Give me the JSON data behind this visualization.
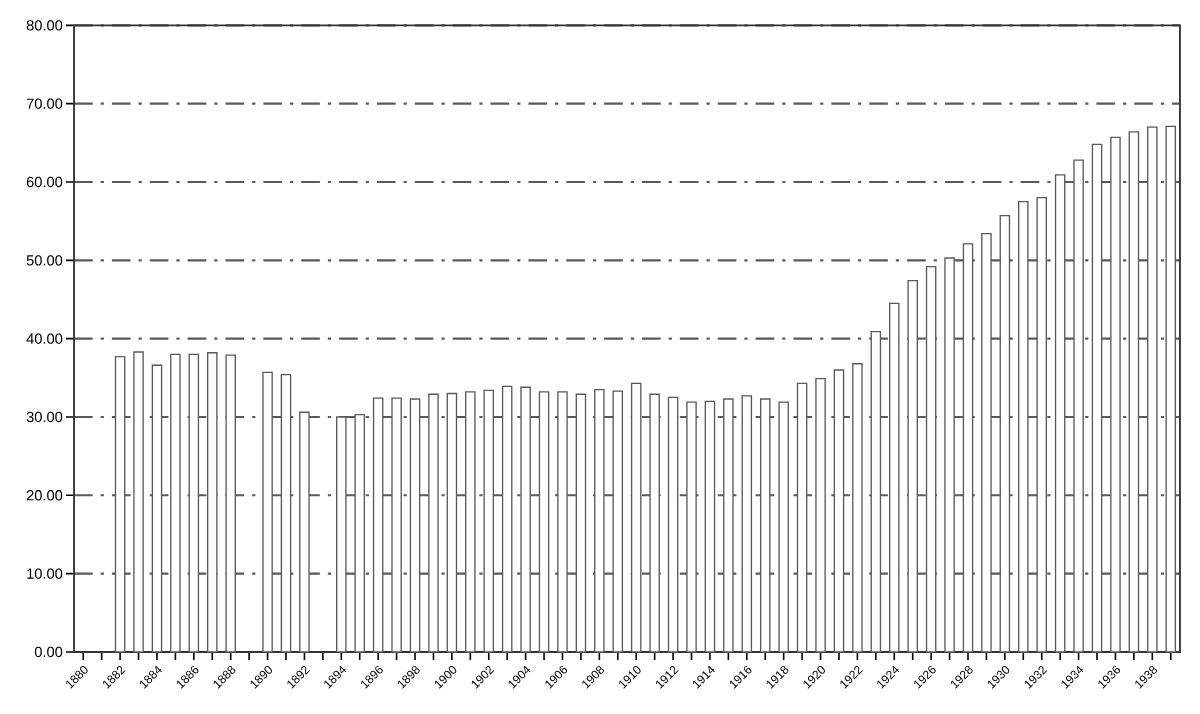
{
  "chart_data": {
    "type": "bar",
    "categories": [
      "1880",
      null,
      "1882",
      null,
      "1884",
      null,
      "1886",
      null,
      "1888",
      null,
      "1890",
      null,
      "1892",
      null,
      "1894",
      null,
      "1896",
      null,
      "1898",
      null,
      "1900",
      null,
      "1902",
      null,
      "1904",
      null,
      "1906",
      null,
      "1908",
      null,
      "1910",
      null,
      "1912",
      null,
      "1914",
      null,
      "1916",
      null,
      "1918",
      null,
      "1920",
      null,
      "1922",
      null,
      "1924",
      null,
      "1926",
      null,
      "1928",
      null,
      "1930",
      null,
      "1932",
      null,
      "1934",
      null,
      "1936",
      null,
      "1938",
      null
    ],
    "values": [
      null,
      null,
      37.7,
      38.3,
      36.6,
      38.0,
      38.0,
      38.2,
      37.9,
      null,
      35.7,
      35.4,
      30.6,
      null,
      30.0,
      30.3,
      32.4,
      32.4,
      32.3,
      32.9,
      33.0,
      33.2,
      33.4,
      33.9,
      33.8,
      33.2,
      33.2,
      32.9,
      33.5,
      33.3,
      34.3,
      32.9,
      32.5,
      31.9,
      32.0,
      32.3,
      32.7,
      32.3,
      31.9,
      34.3,
      34.9,
      36.0,
      36.8,
      40.9,
      44.5,
      47.4,
      49.2,
      50.3,
      52.1,
      53.4,
      55.7,
      57.5,
      58.0,
      60.9,
      62.8,
      64.8,
      65.7,
      66.4,
      67.0,
      67.1
    ],
    "color": "#ffffff",
    "ylim": [
      0,
      80
    ],
    "yticks": [
      {
        "value": 0,
        "label": "0.00"
      },
      {
        "value": 10,
        "label": "10.00"
      },
      {
        "value": 20,
        "label": "20.00"
      },
      {
        "value": 30,
        "label": "30.00"
      },
      {
        "value": 40,
        "label": "40.00"
      },
      {
        "value": 50,
        "label": "50.00"
      },
      {
        "value": 60,
        "label": "60.00"
      },
      {
        "value": 70,
        "label": "70.00"
      },
      {
        "value": 80,
        "label": "80.00"
      }
    ],
    "grid": "y"
  }
}
